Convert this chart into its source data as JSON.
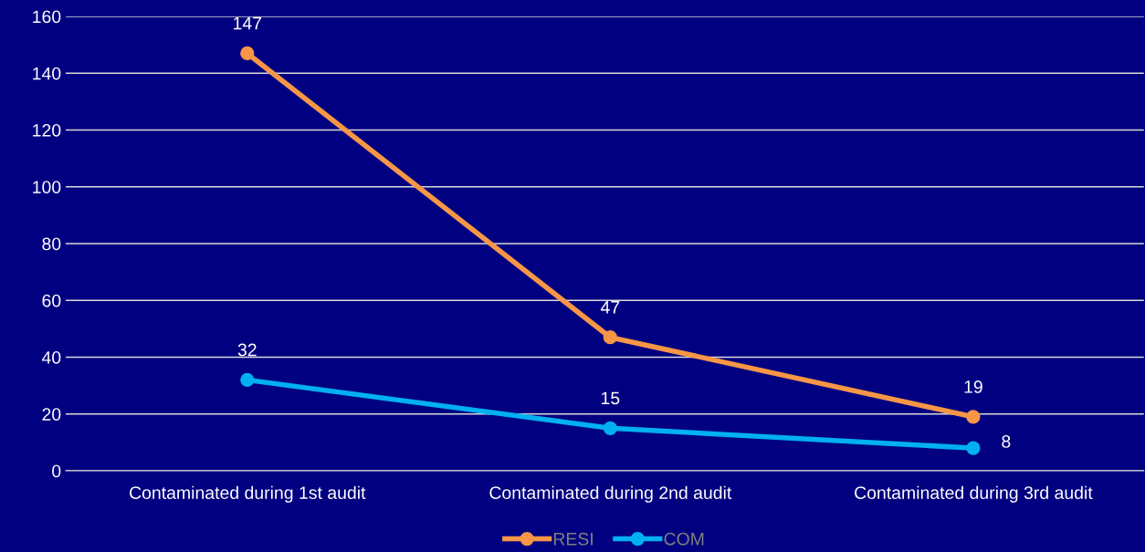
{
  "chart_data": {
    "type": "line",
    "categories": [
      "Contaminated during 1st audit",
      "Contaminated during 2nd audit",
      "Contaminated during 3rd audit"
    ],
    "series": [
      {
        "name": "RESI",
        "color": "#f79646",
        "values": [
          147,
          47,
          19
        ]
      },
      {
        "name": "COM",
        "color": "#00b0f0",
        "values": [
          32,
          15,
          8
        ]
      }
    ],
    "ylim": [
      0,
      160
    ],
    "yticks": [
      0,
      20,
      40,
      60,
      80,
      100,
      120,
      140,
      160
    ],
    "grid": "y",
    "legend": "bottom",
    "marker": "circle",
    "line_style": "solid",
    "data_labels": true
  }
}
